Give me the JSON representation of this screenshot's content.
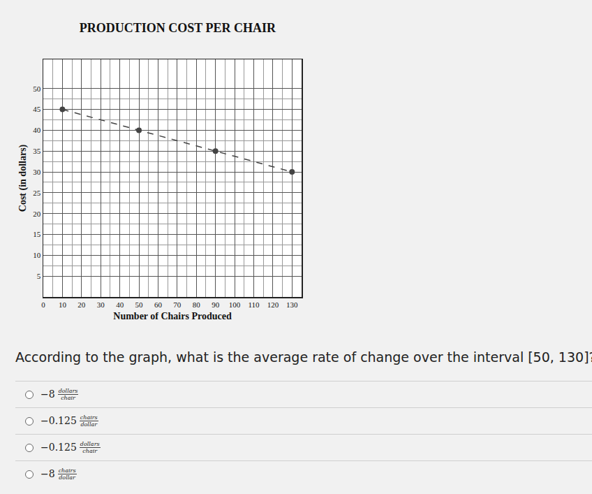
{
  "chart_data": {
    "type": "line",
    "title": "PRODUCTION COST PER CHAIR",
    "x_label": "Number of Chairs Produced",
    "y_label": "Cost (in dollars)",
    "x": [
      10,
      50,
      90,
      130
    ],
    "values": [
      45,
      40,
      35,
      30
    ],
    "color": "#444444",
    "line_style": "dashed",
    "marker": "circle",
    "xlim": [
      0,
      135
    ],
    "ylim": [
      0,
      57
    ],
    "xticks": [
      0,
      10,
      20,
      30,
      40,
      50,
      60,
      70,
      80,
      90,
      100,
      110,
      120,
      130
    ],
    "yticks": [
      5,
      10,
      15,
      20,
      25,
      30,
      35,
      40,
      45,
      50
    ],
    "grid": true
  },
  "question": "According to the graph, what is the average rate of change over the interval [50, 130]?",
  "options": [
    {
      "number": "−8",
      "unit_top": "dollars",
      "unit_bottom": "chair"
    },
    {
      "number": "−0.125",
      "unit_top": "chairs",
      "unit_bottom": "dollar"
    },
    {
      "number": "−0.125",
      "unit_top": "dollars",
      "unit_bottom": "chair"
    },
    {
      "number": "−8",
      "unit_top": "chairs",
      "unit_bottom": "dollar"
    }
  ]
}
